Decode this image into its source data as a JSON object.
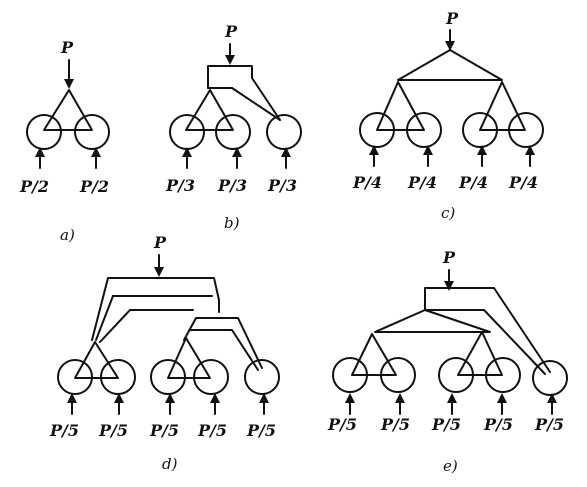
{
  "figure": {
    "load_symbol": "P",
    "panels": [
      {
        "id": "a",
        "caption": "a)",
        "load_label": "P",
        "reactions": [
          "P/2",
          "P/2"
        ]
      },
      {
        "id": "b",
        "caption": "b)",
        "load_label": "P",
        "reactions": [
          "P/3",
          "P/3",
          "P/3"
        ]
      },
      {
        "id": "c",
        "caption": "c)",
        "load_label": "P",
        "reactions": [
          "P/4",
          "P/4",
          "P/4",
          "P/4"
        ]
      },
      {
        "id": "d",
        "caption": "d)",
        "load_label": "P",
        "reactions": [
          "P/5",
          "P/5",
          "P/5",
          "P/5",
          "P/5"
        ]
      },
      {
        "id": "e",
        "caption": "e)",
        "load_label": "P",
        "reactions": [
          "P/5",
          "P/5",
          "P/5",
          "P/5",
          "P/5"
        ]
      }
    ]
  }
}
